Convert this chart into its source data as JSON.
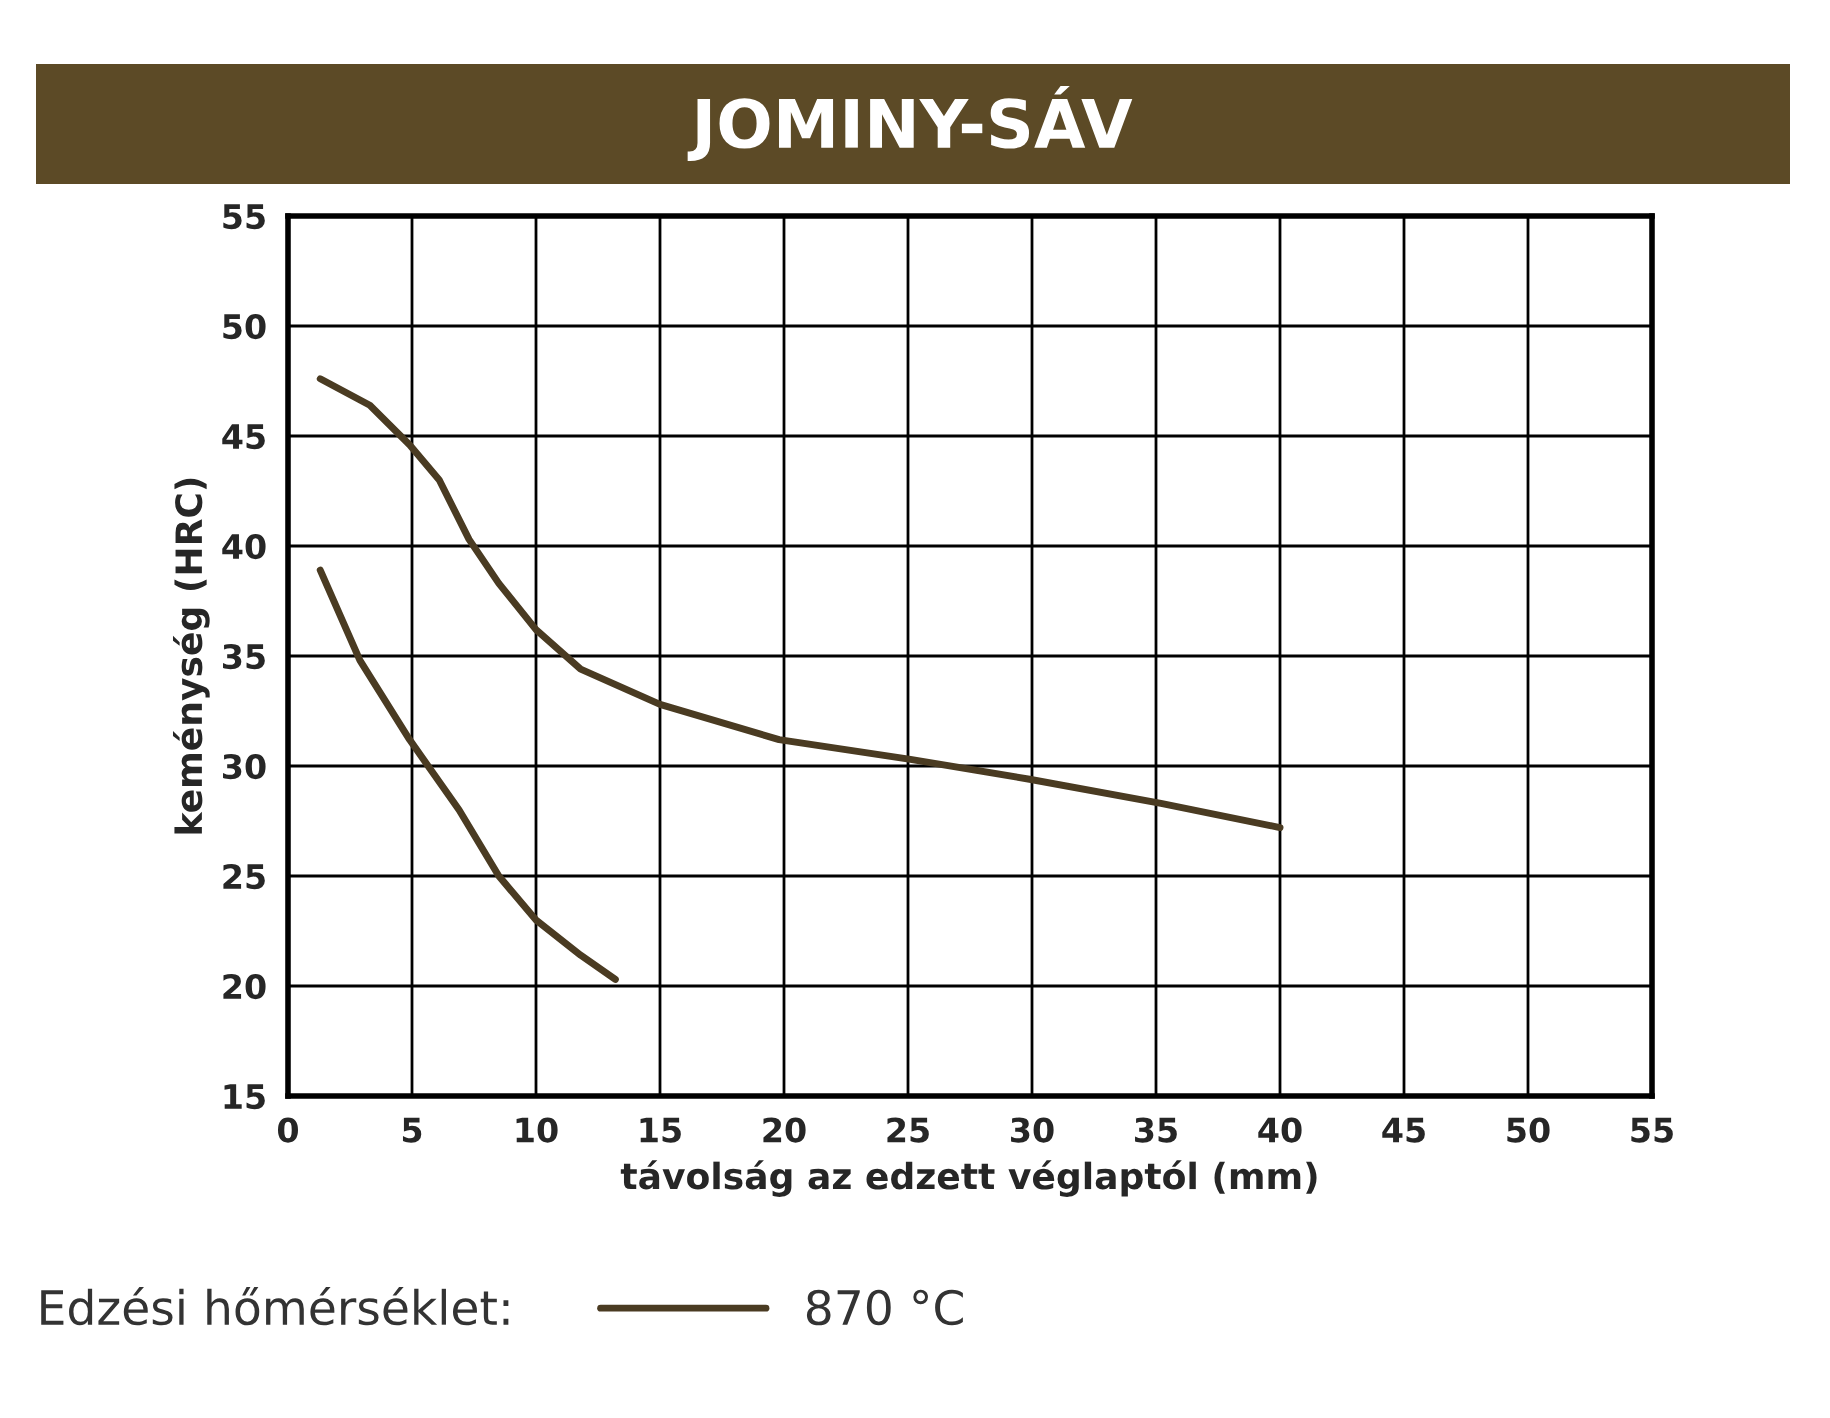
{
  "chart_data": {
    "type": "line",
    "title": "JOMINY-SÁV",
    "xlabel": "távolság az edzett véglaptól (mm)",
    "ylabel": "keménység (HRC)",
    "legend_title": "Edzési hőmérséklet:",
    "legend": "bottom",
    "grid": true,
    "marker": "none",
    "line_style": "solid",
    "xlim": [
      0,
      55
    ],
    "xticks": [
      0,
      5,
      10,
      15,
      20,
      25,
      30,
      35,
      40,
      45,
      50,
      55
    ],
    "ylim": [
      15,
      55
    ],
    "yticks": [
      15,
      20,
      25,
      30,
      35,
      40,
      45,
      50,
      55
    ],
    "series": [
      {
        "name": "870 °C",
        "color": "#4a3b22",
        "x": [
          1.3,
          3.3,
          4.9,
          6.1,
          7.3,
          8.5,
          10,
          11.8,
          15,
          19.8,
          25.1,
          29.9,
          35.2,
          40
        ],
        "values": [
          47.6,
          46.4,
          44.6,
          43,
          40.3,
          38.3,
          36.2,
          34.4,
          32.8,
          31.2,
          30.3,
          29.4,
          28.3,
          27.2
        ]
      },
      {
        "color": "#4a3b22",
        "x": [
          1.3,
          2.9,
          4.9,
          6.9,
          8.5,
          10,
          11.8,
          13.2
        ],
        "values": [
          38.9,
          34.8,
          31.2,
          28,
          25,
          23,
          21.4,
          20.3
        ]
      }
    ]
  }
}
